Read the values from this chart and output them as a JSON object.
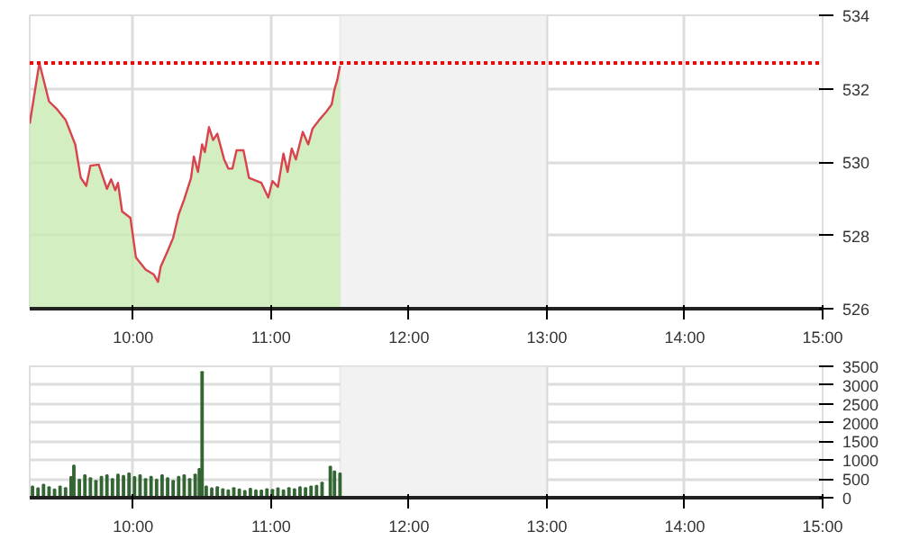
{
  "chart_data": [
    {
      "type": "area",
      "x": [
        9.25,
        9.32,
        9.39,
        9.45,
        9.51,
        9.58,
        9.62,
        9.66,
        9.69,
        9.75,
        9.81,
        9.84,
        9.87,
        9.89,
        9.92,
        9.98,
        10.02,
        10.09,
        10.15,
        10.18,
        10.2,
        10.25,
        10.29,
        10.33,
        10.37,
        10.42,
        10.44,
        10.47,
        10.5,
        10.52,
        10.55,
        10.58,
        10.61,
        10.66,
        10.69,
        10.72,
        10.75,
        10.8,
        10.84,
        10.93,
        10.98,
        11.01,
        11.05,
        11.09,
        11.12,
        11.15,
        11.18,
        11.23,
        11.27,
        11.3,
        11.35,
        11.4,
        11.44,
        11.46,
        11.48,
        11.5
      ],
      "series": [
        {
          "color": "#c8eab0",
          "values": [
            531.05,
            532.7,
            531.65,
            531.43,
            531.15,
            530.48,
            529.57,
            529.35,
            529.9,
            529.93,
            529.27,
            529.53,
            529.23,
            529.43,
            528.65,
            528.48,
            527.4,
            527.07,
            526.93,
            526.73,
            527.15,
            527.57,
            527.93,
            528.57,
            528.98,
            529.57,
            530.15,
            529.73,
            530.48,
            530.27,
            530.95,
            530.6,
            530.77,
            530.07,
            529.82,
            529.82,
            530.32,
            530.32,
            529.57,
            529.43,
            529.03,
            529.48,
            529.32,
            530.23,
            529.73,
            530.37,
            530.07,
            530.82,
            530.48,
            530.9,
            531.15,
            531.37,
            531.57,
            531.98,
            532.23,
            532.62
          ]
        },
        {
          "type": "line",
          "color": "#d9434e",
          "values": [
            531.05,
            532.7,
            531.65,
            531.43,
            531.15,
            530.48,
            529.57,
            529.35,
            529.9,
            529.93,
            529.27,
            529.53,
            529.23,
            529.43,
            528.65,
            528.48,
            527.4,
            527.07,
            526.93,
            526.73,
            527.15,
            527.57,
            527.93,
            528.57,
            528.98,
            529.57,
            530.15,
            529.73,
            530.48,
            530.27,
            530.95,
            530.6,
            530.77,
            530.07,
            529.82,
            529.82,
            530.32,
            530.32,
            529.57,
            529.43,
            529.03,
            529.48,
            529.32,
            530.23,
            529.73,
            530.37,
            530.07,
            530.82,
            530.48,
            530.9,
            531.15,
            531.37,
            531.57,
            531.98,
            532.23,
            532.62
          ]
        }
      ],
      "xlim": [
        9.25,
        15
      ],
      "xticks": [
        {
          "value": 10,
          "label": "10:00"
        },
        {
          "value": 11,
          "label": "11:00"
        },
        {
          "value": 12,
          "label": "12:00"
        },
        {
          "value": 13,
          "label": "13:00"
        },
        {
          "value": 14,
          "label": "14:00"
        },
        {
          "value": 15,
          "label": "15:00"
        }
      ],
      "ylim": [
        526,
        534
      ],
      "yticks": [
        526,
        528,
        530,
        532,
        534
      ],
      "grid": true,
      "ref_lines": [
        {
          "axis": "y",
          "value": 532.7,
          "color": "#ff0000",
          "line_style": "dotted"
        }
      ],
      "bands": [
        {
          "axis": "x",
          "from": 11.5,
          "to": 13,
          "color": "#f2f2f2"
        }
      ]
    },
    {
      "type": "bar",
      "x": [
        9.27,
        9.31,
        9.35,
        9.39,
        9.43,
        9.47,
        9.51,
        9.55,
        9.57,
        9.61,
        9.65,
        9.69,
        9.73,
        9.77,
        9.81,
        9.85,
        9.89,
        9.93,
        9.97,
        10.01,
        10.05,
        10.09,
        10.13,
        10.17,
        10.21,
        10.25,
        10.29,
        10.33,
        10.37,
        10.41,
        10.45,
        10.48,
        10.5,
        10.53,
        10.57,
        10.61,
        10.65,
        10.69,
        10.73,
        10.77,
        10.81,
        10.85,
        10.89,
        10.93,
        10.97,
        11.01,
        11.05,
        11.09,
        11.13,
        11.17,
        11.21,
        11.25,
        11.29,
        11.33,
        11.37,
        11.43,
        11.46,
        11.5
      ],
      "series": [
        {
          "color": "#336633",
          "values": [
            300,
            250,
            350,
            280,
            220,
            300,
            260,
            550,
            860,
            480,
            600,
            520,
            450,
            560,
            600,
            500,
            620,
            580,
            650,
            550,
            600,
            500,
            560,
            480,
            600,
            520,
            450,
            560,
            600,
            500,
            620,
            770,
            3350,
            300,
            250,
            280,
            230,
            200,
            260,
            220,
            180,
            240,
            200,
            190,
            230,
            210,
            250,
            200,
            260,
            230,
            280,
            260,
            300,
            320,
            400,
            830,
            700,
            650
          ]
        }
      ],
      "xlim": [
        9.25,
        15
      ],
      "xticks": [
        {
          "value": 10,
          "label": "10:00"
        },
        {
          "value": 11,
          "label": "11:00"
        },
        {
          "value": 12,
          "label": "12:00"
        },
        {
          "value": 13,
          "label": "13:00"
        },
        {
          "value": 14,
          "label": "14:00"
        },
        {
          "value": 15,
          "label": "15:00"
        }
      ],
      "ylim": [
        0,
        3500
      ],
      "yticks": [
        0,
        500,
        1000,
        1500,
        2000,
        2500,
        3000,
        3500
      ],
      "grid": true,
      "bands": [
        {
          "axis": "x",
          "from": 11.5,
          "to": 13,
          "color": "#f2f2f2"
        }
      ]
    }
  ]
}
